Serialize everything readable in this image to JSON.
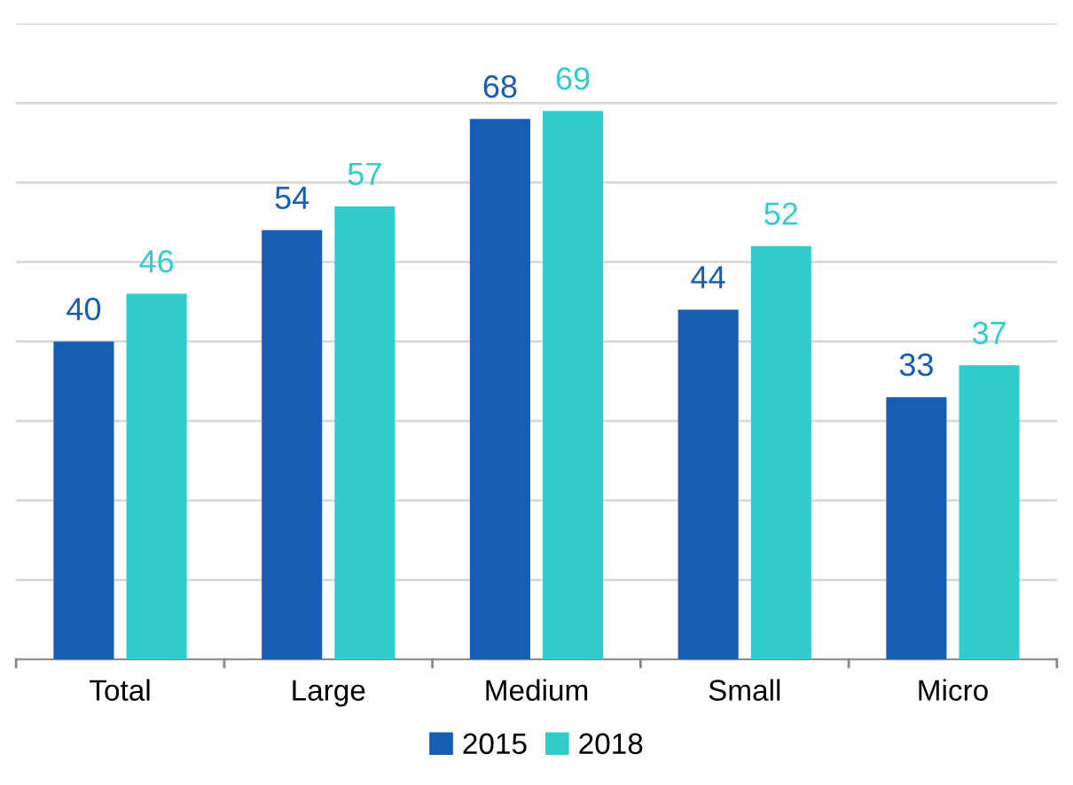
{
  "chart_data": {
    "type": "bar",
    "categories": [
      "Total",
      "Large",
      "Medium",
      "Small",
      "Micro"
    ],
    "series": [
      {
        "name": "2015",
        "color": "#175db4",
        "values": [
          40,
          54,
          68,
          44,
          33
        ]
      },
      {
        "name": "2018",
        "color": "#33cccc",
        "values": [
          46,
          57,
          69,
          52,
          37
        ]
      }
    ],
    "ylim": [
      0,
      80
    ],
    "yticks": [
      {
        "value": 0,
        "label": null
      },
      {
        "value": 10,
        "label": null
      },
      {
        "value": 20,
        "label": null
      },
      {
        "value": 30,
        "label": null
      },
      {
        "value": 40,
        "label": null
      },
      {
        "value": 50,
        "label": null
      },
      {
        "value": 60,
        "label": null
      },
      {
        "value": 70,
        "label": null
      },
      {
        "value": 80,
        "label": null
      }
    ],
    "grid": "y",
    "tick_labels": "x",
    "data_labels": true,
    "legend": "bottom"
  }
}
